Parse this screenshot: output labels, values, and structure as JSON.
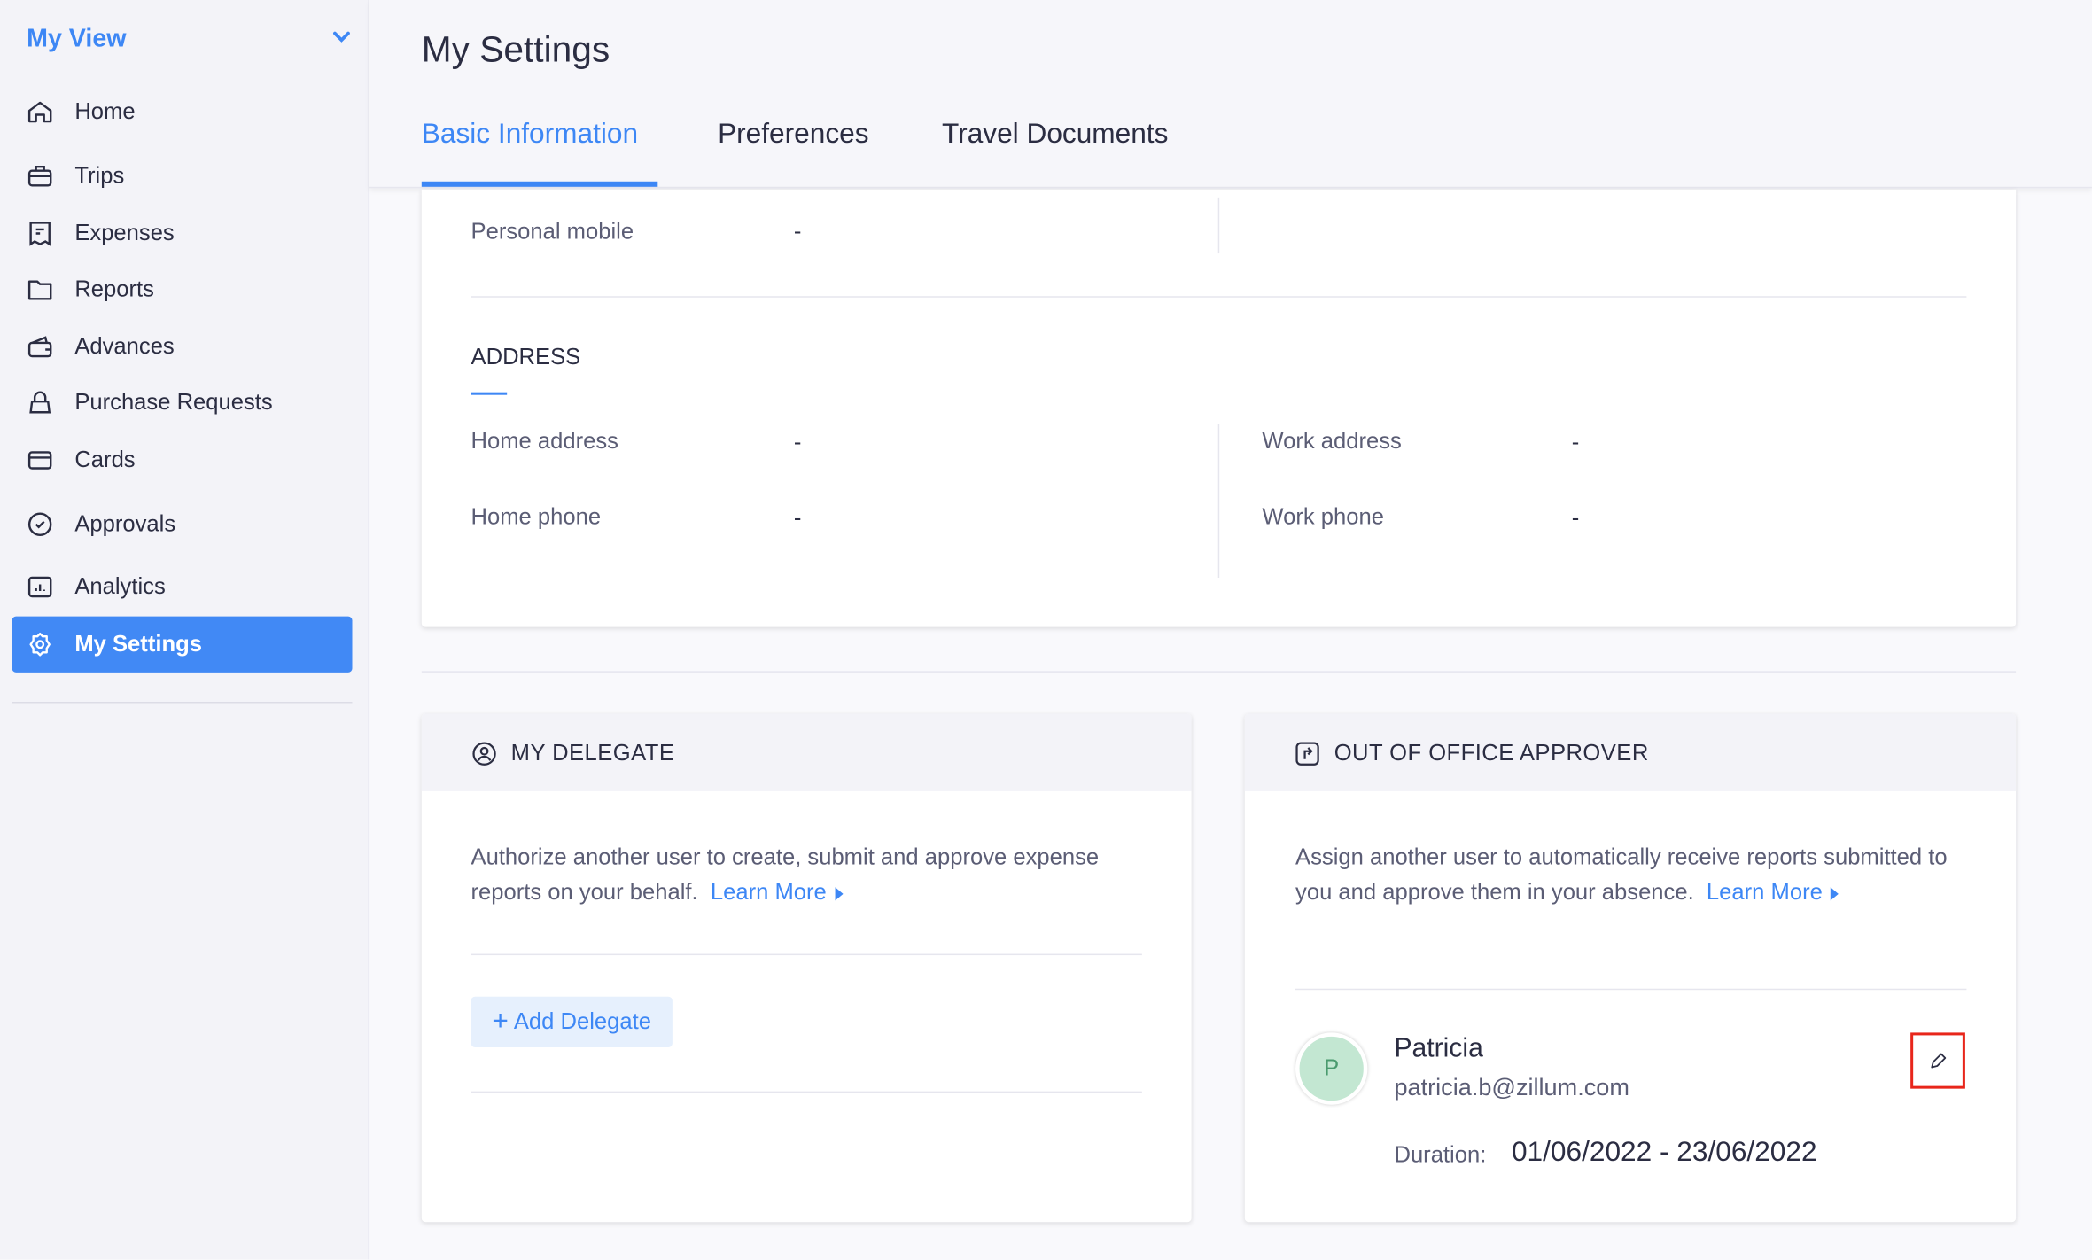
{
  "sidebar": {
    "title": "My View",
    "items": [
      {
        "label": "Home",
        "icon": "home-icon"
      },
      {
        "label": "Trips",
        "icon": "briefcase-icon"
      },
      {
        "label": "Expenses",
        "icon": "receipt-icon"
      },
      {
        "label": "Reports",
        "icon": "folder-icon"
      },
      {
        "label": "Advances",
        "icon": "wallet-icon"
      },
      {
        "label": "Purchase Requests",
        "icon": "bag-icon"
      },
      {
        "label": "Cards",
        "icon": "card-icon"
      },
      {
        "label": "Approvals",
        "icon": "check-circle-icon"
      },
      {
        "label": "Analytics",
        "icon": "chart-icon"
      },
      {
        "label": "My Settings",
        "icon": "gear-icon",
        "active": true
      }
    ]
  },
  "header": {
    "title": "My Settings",
    "tabs": [
      {
        "label": "Basic Information",
        "active": true
      },
      {
        "label": "Preferences"
      },
      {
        "label": "Travel Documents"
      }
    ]
  },
  "contact": {
    "personal_mobile_label": "Personal mobile",
    "personal_mobile_value": "-"
  },
  "address": {
    "heading": "ADDRESS",
    "home_address_label": "Home address",
    "home_address_value": "-",
    "work_address_label": "Work address",
    "work_address_value": "-",
    "home_phone_label": "Home phone",
    "home_phone_value": "-",
    "work_phone_label": "Work phone",
    "work_phone_value": "-"
  },
  "delegate": {
    "title": "MY DELEGATE",
    "description": "Authorize another user to create, submit and approve expense reports on your behalf.",
    "learn_more": "Learn More",
    "add_button": "Add Delegate",
    "add_prefix": "+"
  },
  "ooo": {
    "title": "OUT OF OFFICE APPROVER",
    "description": "Assign another user to automatically receive reports submitted to you and approve them in your absence.",
    "learn_more": "Learn More",
    "approver": {
      "initial": "P",
      "name": "Patricia",
      "email": "patricia.b@zillum.com",
      "duration_label": "Duration:",
      "duration_value": "01/06/2022 - 23/06/2022"
    }
  },
  "colors": {
    "accent": "#3d87f5",
    "active_nav": "#4189f5",
    "highlight": "#e8261b",
    "avatar_bg": "#c3e7d2"
  }
}
